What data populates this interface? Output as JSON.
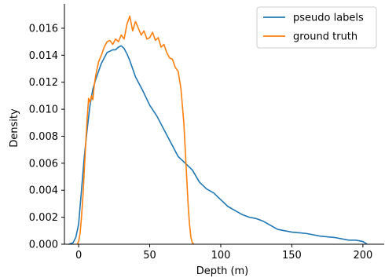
{
  "chart_data": {
    "type": "line",
    "xlabel": "Depth (m)",
    "ylabel": "Density",
    "xlim": [
      -10,
      215
    ],
    "ylim": [
      0,
      0.0178
    ],
    "xticks": [
      0,
      50,
      100,
      150,
      200
    ],
    "xtick_labels": [
      "0",
      "50",
      "100",
      "150",
      "200"
    ],
    "yticks": [
      0,
      0.002,
      0.004,
      0.006,
      0.008,
      0.01,
      0.012,
      0.014,
      0.016
    ],
    "ytick_labels": [
      "0.000",
      "0.002",
      "0.004",
      "0.006",
      "0.008",
      "0.010",
      "0.012",
      "0.014",
      "0.016"
    ],
    "grid": false,
    "legend_position": "top-right",
    "series": [
      {
        "name": "pseudo labels",
        "color": "#1f77b4",
        "x": [
          -7,
          -4,
          -2,
          0,
          2,
          4,
          6,
          8,
          10,
          12,
          14,
          16,
          18,
          20,
          22,
          24,
          26,
          28,
          30,
          32,
          34,
          36,
          38,
          40,
          45,
          50,
          55,
          60,
          65,
          70,
          75,
          80,
          85,
          90,
          95,
          100,
          105,
          110,
          115,
          120,
          125,
          130,
          135,
          140,
          150,
          160,
          170,
          180,
          190,
          195,
          200,
          203
        ],
        "y": [
          0.0,
          0.0001,
          0.0005,
          0.0015,
          0.004,
          0.0065,
          0.0085,
          0.0103,
          0.0115,
          0.0122,
          0.0128,
          0.0134,
          0.0138,
          0.0142,
          0.0143,
          0.0144,
          0.0144,
          0.0146,
          0.0147,
          0.0145,
          0.0141,
          0.0136,
          0.013,
          0.0124,
          0.0114,
          0.0103,
          0.0095,
          0.0085,
          0.0075,
          0.0065,
          0.006,
          0.0055,
          0.0046,
          0.0041,
          0.0038,
          0.0033,
          0.0028,
          0.0025,
          0.0022,
          0.002,
          0.0019,
          0.0017,
          0.0014,
          0.0011,
          0.0009,
          0.0008,
          0.0006,
          0.0005,
          0.0003,
          0.0003,
          0.0002,
          0.0
        ]
      },
      {
        "name": "ground truth",
        "color": "#ff7f0e",
        "x": [
          -1,
          0,
          1,
          2,
          3,
          4,
          5,
          6,
          7,
          8,
          9,
          10,
          11,
          12,
          14,
          16,
          18,
          20,
          22,
          24,
          26,
          28,
          30,
          32,
          34,
          36,
          38,
          40,
          42,
          44,
          46,
          48,
          50,
          52,
          54,
          56,
          58,
          60,
          62,
          64,
          66,
          68,
          70,
          72,
          74,
          75,
          76,
          77,
          78,
          79,
          80,
          81
        ],
        "y": [
          0.0,
          0.0002,
          0.0008,
          0.002,
          0.0035,
          0.0055,
          0.0075,
          0.0093,
          0.0108,
          0.0105,
          0.011,
          0.0107,
          0.0118,
          0.0125,
          0.0135,
          0.014,
          0.0146,
          0.015,
          0.0151,
          0.0148,
          0.0152,
          0.015,
          0.0155,
          0.0152,
          0.0163,
          0.0169,
          0.0158,
          0.0165,
          0.016,
          0.0155,
          0.0158,
          0.0152,
          0.0153,
          0.0157,
          0.0151,
          0.0153,
          0.0146,
          0.0148,
          0.0142,
          0.0138,
          0.0137,
          0.0131,
          0.0128,
          0.0115,
          0.009,
          0.007,
          0.005,
          0.003,
          0.0015,
          0.0005,
          0.0001,
          0.0
        ]
      }
    ]
  }
}
